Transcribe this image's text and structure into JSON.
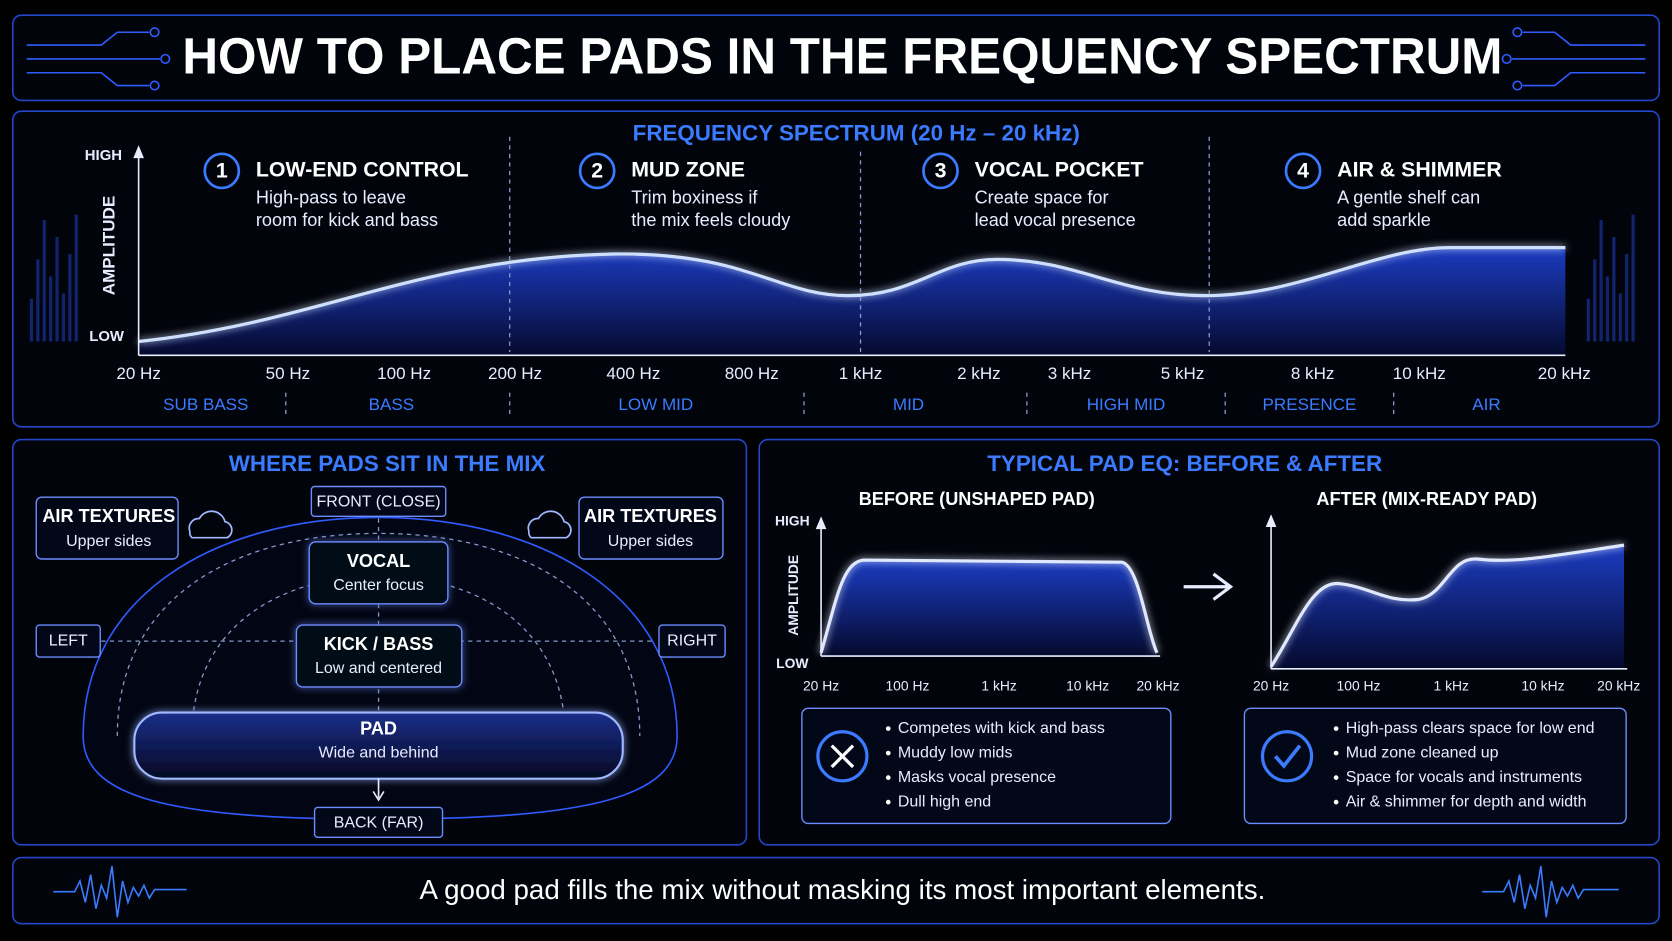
{
  "title": "HOW TO PLACE PADS IN THE FREQUENCY SPECTRUM",
  "spectrum": {
    "heading": "FREQUENCY SPECTRUM (20 Hz – 20 kHz)",
    "axis_high": "HIGH",
    "axis_low": "LOW",
    "axis_label": "AMPLITUDE",
    "zones": [
      {
        "number": "1",
        "title": "LOW-END CONTROL",
        "lines": [
          "High-pass to leave",
          "room for kick and bass"
        ]
      },
      {
        "number": "2",
        "title": "MUD ZONE",
        "lines": [
          "Trim boxiness if",
          "the mix feels cloudy"
        ]
      },
      {
        "number": "3",
        "title": "VOCAL POCKET",
        "lines": [
          "Create space for",
          "lead vocal presence"
        ]
      },
      {
        "number": "4",
        "title": "AIR & SHIMMER",
        "lines": [
          "A gentle shelf can",
          "add sparkle"
        ]
      }
    ],
    "frequencies": [
      "20 Hz",
      "50 Hz",
      "100 Hz",
      "200 Hz",
      "400 Hz",
      "800 Hz",
      "1 kHz",
      "2 kHz",
      "3 kHz",
      "5 kHz",
      "8 kHz",
      "10 kHz",
      "20 kHz"
    ],
    "bands": [
      "SUB BASS",
      "BASS",
      "LOW MID",
      "MID",
      "HIGH MID",
      "PRESENCE",
      "AIR"
    ]
  },
  "mix": {
    "heading": "WHERE PADS SIT IN THE MIX",
    "front": "FRONT (CLOSE)",
    "back": "BACK (FAR)",
    "left": "LEFT",
    "right": "RIGHT",
    "air_left": {
      "title": "AIR TEXTURES",
      "text": "Upper sides"
    },
    "air_right": {
      "title": "AIR TEXTURES",
      "text": "Upper sides"
    },
    "vocal": {
      "title": "VOCAL",
      "text": "Center focus"
    },
    "kick_bass": {
      "title": "KICK / BASS",
      "text": "Low and centered"
    },
    "pad": {
      "title": "PAD",
      "text": "Wide and behind"
    }
  },
  "eq": {
    "heading": "TYPICAL PAD EQ: BEFORE & AFTER",
    "before": {
      "title": "BEFORE (UNSHAPED PAD)",
      "axis_high": "HIGH",
      "axis_low": "LOW",
      "axis_label": "AMPLITUDE",
      "frequencies": [
        "20 Hz",
        "100 Hz",
        "1 kHz",
        "10 kHz",
        "20 kHz"
      ],
      "notes": [
        "Competes with kick and bass",
        "Muddy low mids",
        "Masks vocal presence",
        "Dull high end"
      ]
    },
    "after": {
      "title": "AFTER (MIX-READY PAD)",
      "frequencies": [
        "20 Hz",
        "100 Hz",
        "1 kHz",
        "10 kHz",
        "20 kHz"
      ],
      "notes": [
        "High-pass clears space for low end",
        "Mud zone cleaned up",
        "Space for vocals and instruments",
        "Air & shimmer for depth and width"
      ]
    }
  },
  "footer": "A good pad fills the mix without masking its most important elements."
}
